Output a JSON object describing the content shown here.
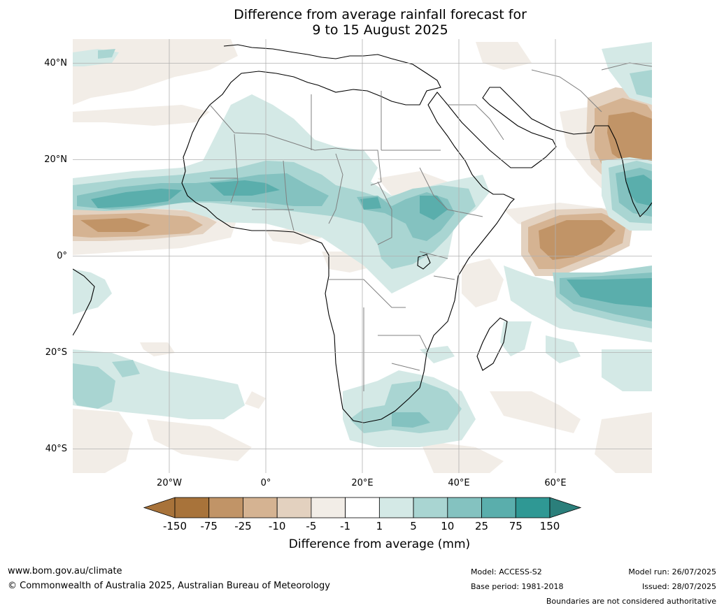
{
  "title": {
    "line1": "Difference from average rainfall forecast for",
    "line2": "9 to 15 August 2025"
  },
  "map": {
    "lat_labels": [
      "40°N",
      "20°N",
      "0°",
      "20°S",
      "40°S"
    ],
    "lon_labels": [
      "20°W",
      "0°",
      "20°E",
      "40°E",
      "60°E"
    ],
    "lat_values": [
      40,
      20,
      0,
      -20,
      -40
    ],
    "lon_values": [
      -20,
      0,
      20,
      40,
      60
    ],
    "extent": {
      "lon_min": -40,
      "lon_max": 80,
      "lat_min": -45,
      "lat_max": 45
    }
  },
  "colorbar": {
    "title": "Difference from average (mm)",
    "labels": [
      "-150",
      "-75",
      "-25",
      "-10",
      "-5",
      "-1",
      "1",
      "5",
      "10",
      "25",
      "75",
      "150"
    ],
    "colors": [
      "#a8733a",
      "#a8733a",
      "#c19467",
      "#d5b392",
      "#e3d1bf",
      "#f2ede7",
      "#ffffff",
      "#d4e9e6",
      "#a9d5d2",
      "#84c2c0",
      "#5aaeac",
      "#2f9894",
      "#2b7f7b"
    ]
  },
  "footer": {
    "website": "www.bom.gov.au/climate",
    "copyright": "© Commonwealth of Australia 2025, Australian Bureau of Meteorology",
    "model": "Model: ACCESS-S2",
    "base_period": "Base period: 1981-2018",
    "model_run": "Model run: 26/07/2025",
    "issued": "Issued: 28/07/2025",
    "disclaimer": "Boundaries are not considered authoritative"
  }
}
